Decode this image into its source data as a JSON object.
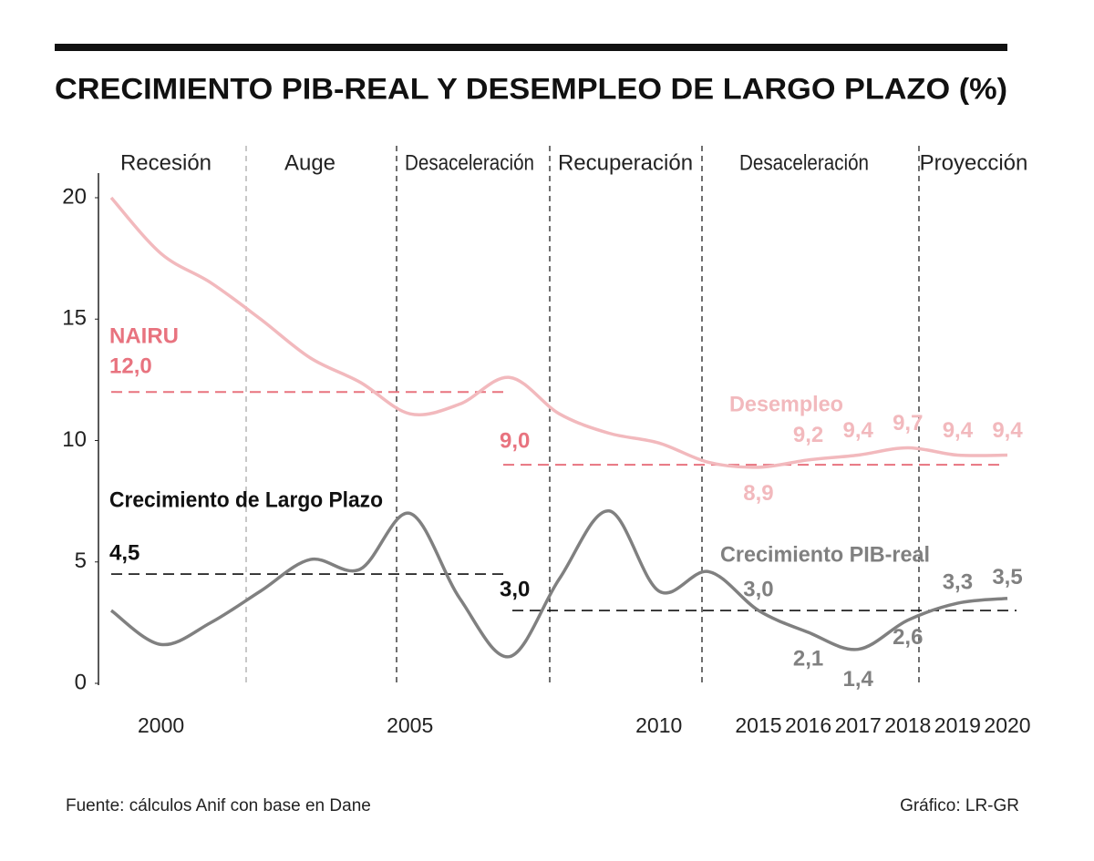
{
  "chart_data": {
    "type": "line",
    "title": "CRECIMIENTO PIB-REAL Y DESEMPLEO DE LARGO PLAZO (%)",
    "phases": [
      "Recesión",
      "Auge",
      "Desaceleración",
      "Recuperación",
      "Desaceleración",
      "Proyección"
    ],
    "categories": [
      null,
      "2000",
      null,
      null,
      null,
      null,
      "2005",
      null,
      null,
      null,
      null,
      "2010",
      null,
      "2015",
      "2016",
      "2017",
      "2018",
      "2019",
      "2020"
    ],
    "series": [
      {
        "name": "Desempleo",
        "color": "#f2b9bd",
        "values": [
          20,
          17.7,
          16.5,
          15,
          13.4,
          12.4,
          11.1,
          11.5,
          12.6,
          11.1,
          10.3,
          9.9,
          9.1,
          8.9,
          9.2,
          9.4,
          9.7,
          9.4,
          9.4
        ],
        "value_labels": [
          null,
          null,
          null,
          null,
          null,
          null,
          null,
          null,
          null,
          null,
          null,
          null,
          null,
          "8,9",
          "9,2",
          "9,4",
          "9,7",
          "9,4",
          "9,4"
        ]
      },
      {
        "name": "Crecimiento PIB-real",
        "color": "#808080",
        "values": [
          3.0,
          1.6,
          2.5,
          3.8,
          5.1,
          4.7,
          7.0,
          3.5,
          1.1,
          4.3,
          7.1,
          3.8,
          4.6,
          3.0,
          2.1,
          1.4,
          2.6,
          3.3,
          3.5
        ],
        "value_labels": [
          null,
          null,
          null,
          null,
          null,
          null,
          null,
          null,
          null,
          null,
          null,
          null,
          null,
          "3,0",
          "2,1",
          "1,4",
          "2,6",
          "3,3",
          "3,5"
        ]
      }
    ],
    "nairu": {
      "label": "NAIRU",
      "color": "#e8737f",
      "periods": [
        {
          "value": 12,
          "value_label": "12,0"
        },
        {
          "value": 9,
          "value_label": "9,0"
        }
      ]
    },
    "long_term_growth": {
      "label": "Crecimiento de Largo Plazo",
      "color": "#111111",
      "periods": [
        {
          "value": 4.5,
          "value_label": "4,5"
        },
        {
          "value": 3,
          "value_label": "3,0"
        }
      ]
    },
    "ylim": [
      0,
      20
    ],
    "yticks": [
      0,
      5,
      10,
      15,
      20
    ],
    "source": "Fuente: cálculos Anif con base en Dane",
    "credit": "Gráfico: LR-GR"
  }
}
